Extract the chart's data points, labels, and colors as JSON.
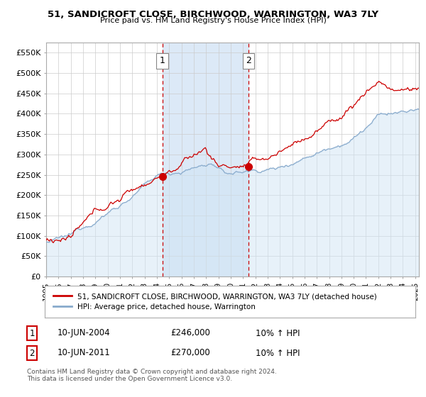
{
  "title1": "51, SANDICROFT CLOSE, BIRCHWOOD, WARRINGTON, WA3 7LY",
  "title2": "Price paid vs. HM Land Registry's House Price Index (HPI)",
  "xlim_start": 1995.0,
  "xlim_end": 2025.3,
  "ylim_bottom": 0,
  "ylim_top": 575000,
  "yticks": [
    0,
    50000,
    100000,
    150000,
    200000,
    250000,
    300000,
    350000,
    400000,
    450000,
    500000,
    550000
  ],
  "ytick_labels": [
    "£0",
    "£50K",
    "£100K",
    "£150K",
    "£200K",
    "£250K",
    "£300K",
    "£350K",
    "£400K",
    "£450K",
    "£500K",
    "£550K"
  ],
  "xticks": [
    1995,
    1996,
    1997,
    1998,
    1999,
    2000,
    2001,
    2002,
    2003,
    2004,
    2005,
    2006,
    2007,
    2008,
    2009,
    2010,
    2011,
    2012,
    2013,
    2014,
    2015,
    2016,
    2017,
    2018,
    2019,
    2020,
    2021,
    2022,
    2023,
    2024,
    2025
  ],
  "grid_color": "#cccccc",
  "bg_color": "#ffffff",
  "shade_color": "#dce9f7",
  "red_color": "#cc0000",
  "blue_color": "#88aacc",
  "blue_fill": "#d0e4f4",
  "marker1_x": 2004.44,
  "marker1_y": 246000,
  "marker2_x": 2011.44,
  "marker2_y": 270000,
  "legend_label1": "51, SANDICROFT CLOSE, BIRCHWOOD, WARRINGTON, WA3 7LY (detached house)",
  "legend_label2": "HPI: Average price, detached house, Warrington",
  "table_row1": [
    "1",
    "10-JUN-2004",
    "£246,000",
    "10% ↑ HPI"
  ],
  "table_row2": [
    "2",
    "10-JUN-2011",
    "£270,000",
    "10% ↑ HPI"
  ],
  "footer": "Contains HM Land Registry data © Crown copyright and database right 2024.\nThis data is licensed under the Open Government Licence v3.0."
}
